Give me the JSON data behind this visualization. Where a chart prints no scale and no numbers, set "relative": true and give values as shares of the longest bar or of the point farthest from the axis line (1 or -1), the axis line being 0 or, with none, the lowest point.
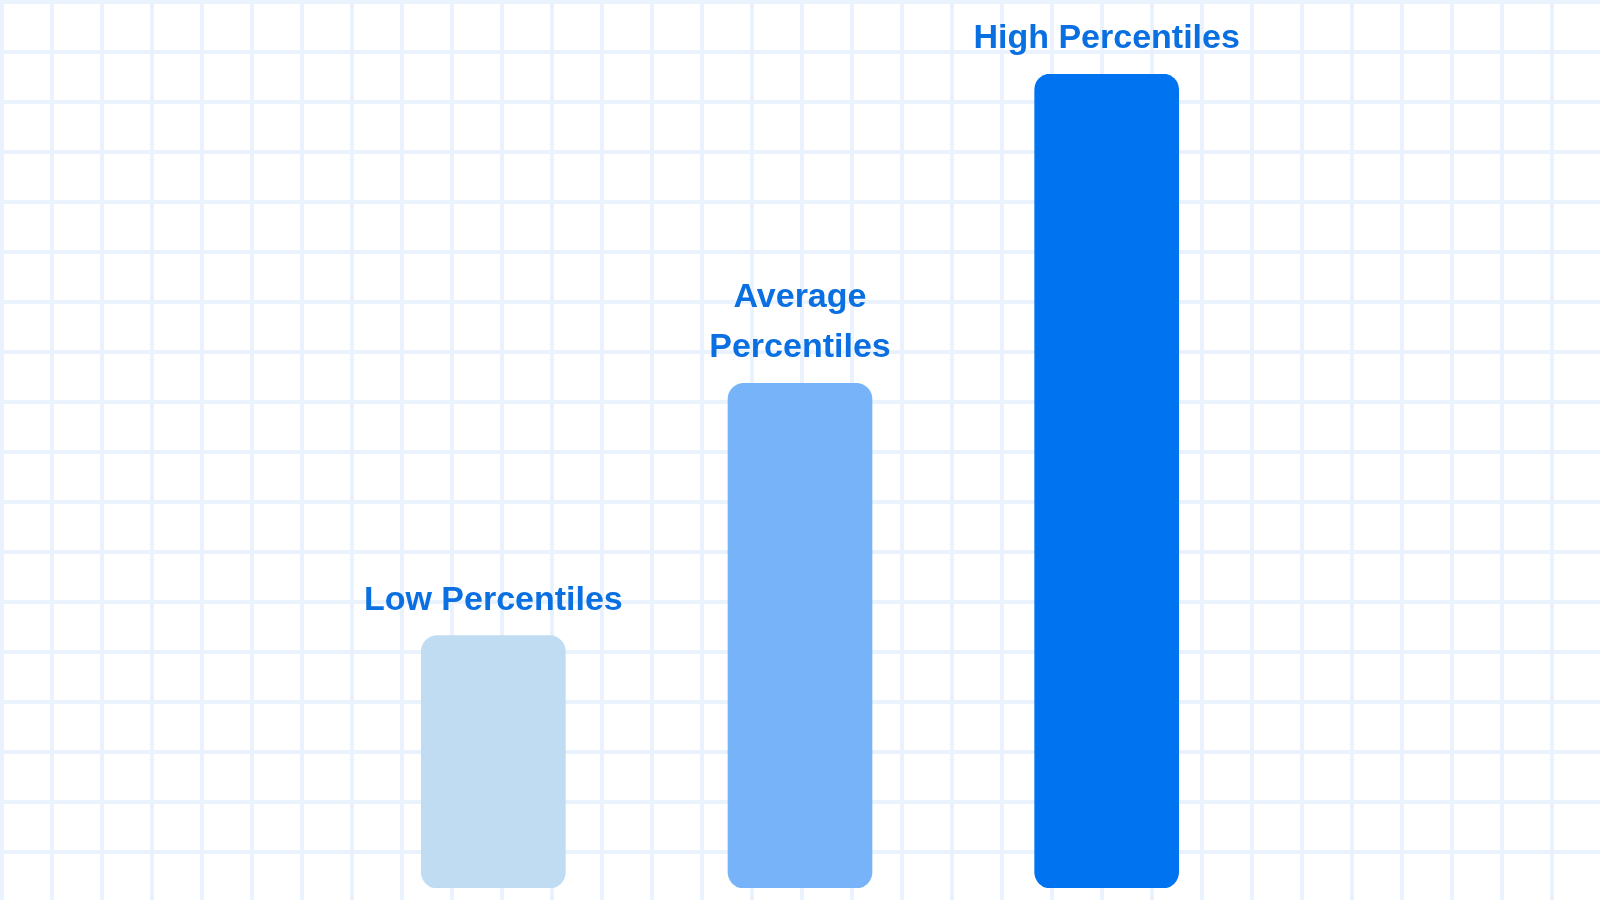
{
  "chart_data": {
    "type": "bar",
    "relative": true,
    "categories": [
      "Low Percentiles",
      "Average Percentiles",
      "High Percentiles"
    ],
    "values": [
      0.31,
      0.62,
      1
    ],
    "colors": [
      "#c0dcf3",
      "#76b3f8",
      "#0073f0"
    ]
  }
}
